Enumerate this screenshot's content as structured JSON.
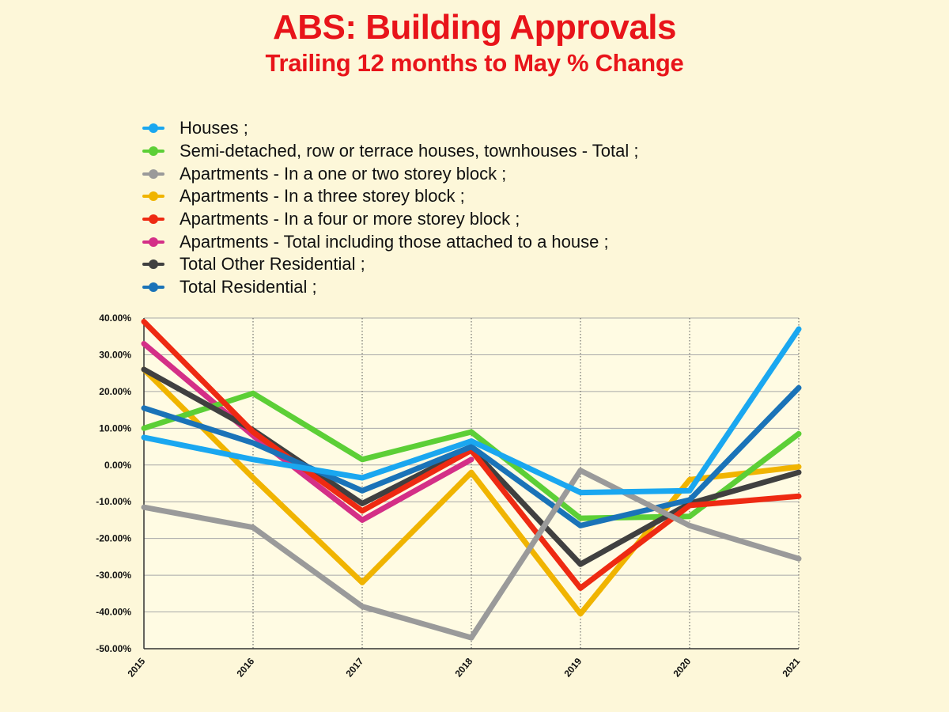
{
  "title": "ABS: Building Approvals",
  "subtitle": "Trailing 12 months to May % Change",
  "chart_data": {
    "type": "line",
    "x": [
      "2015",
      "2016",
      "2017",
      "2018",
      "2019",
      "2020",
      "2021"
    ],
    "ylim": [
      -50,
      40
    ],
    "yticks": [
      "40.00%",
      "30.00%",
      "20.00%",
      "10.00%",
      "0.00%",
      "-10.00%",
      "-20.00%",
      "-30.00%",
      "-40.00%",
      "-50.00%"
    ],
    "grid": true,
    "legend_position": "top",
    "series": [
      {
        "name": "Houses ;",
        "color": "#1aa7f0",
        "values": [
          7.5,
          1.5,
          -3.5,
          6.5,
          -7.5,
          -7.0,
          37.0
        ]
      },
      {
        "name": "Semi-detached, row or terrace houses, townhouses - Total ;",
        "color": "#5ccf36",
        "values": [
          10.0,
          19.5,
          1.5,
          9.0,
          -14.5,
          -14.0,
          8.5
        ]
      },
      {
        "name": "Apartments - In a one or two storey block ;",
        "color": "#9a9a9a",
        "values": [
          -11.5,
          -17.0,
          -38.5,
          -47.0,
          -1.5,
          -16.5,
          -25.5
        ]
      },
      {
        "name": "Apartments - In a three storey block ;",
        "color": "#f0b400",
        "values": [
          26.0,
          -3.5,
          -32.0,
          -2.0,
          -40.5,
          -4.0,
          -0.5
        ]
      },
      {
        "name": "Apartments - In a four or more storey block ;",
        "color": "#ee2a12",
        "values": [
          39.0,
          9.0,
          -12.5,
          4.0,
          -33.5,
          -11.0,
          -8.5
        ]
      },
      {
        "name": "Apartments - Total including those attached to a house ;",
        "color": "#d42f87",
        "values": [
          33.0,
          8.0,
          -15.0,
          1.5,
          null,
          null,
          null
        ]
      },
      {
        "name": "Total Other Residential ;",
        "color": "#404040",
        "values": [
          26.0,
          9.5,
          -10.5,
          4.5,
          -27.0,
          -10.5,
          -2.0
        ]
      },
      {
        "name": "Total Residential ;",
        "color": "#1a73b8",
        "values": [
          15.5,
          6.0,
          -7.0,
          5.0,
          -16.5,
          -9.5,
          21.0
        ]
      }
    ]
  }
}
